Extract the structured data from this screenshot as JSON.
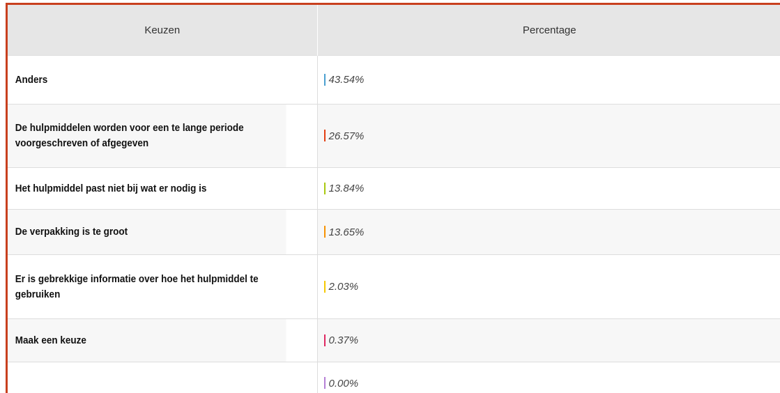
{
  "chart_data": {
    "type": "bar",
    "orientation": "horizontal",
    "columns": [
      "Keuzen",
      "Percentage"
    ],
    "categories": [
      "Anders",
      "De hulpmiddelen worden voor een te lange periode voorgeschreven of afgegeven",
      "Het hulpmiddel past niet bij wat er nodig is",
      "De verpakking is te groot",
      "Er is gebrekkige informatie over hoe het hulpmiddel te gebruiken",
      "Maak een keuze",
      null
    ],
    "values": [
      43.54,
      26.57,
      13.84,
      13.65,
      2.03,
      0.37,
      0.0
    ],
    "value_labels": [
      "43.54%",
      "26.57%",
      "13.84%",
      "13.65%",
      "2.03%",
      "0.37%",
      "0.00%"
    ],
    "colors": [
      "#4a9fd0",
      "#e33f12",
      "#a9c80f",
      "#f79200",
      "#f5c800",
      "#df2660",
      "#b57fd6"
    ]
  }
}
